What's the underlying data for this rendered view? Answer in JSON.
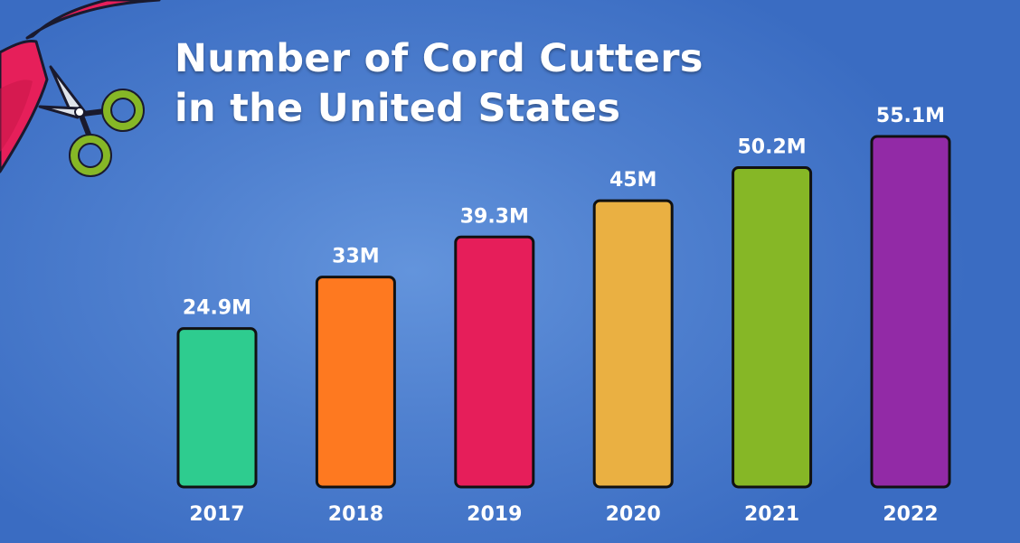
{
  "chart_data": {
    "type": "bar",
    "title": [
      "Number of Cord Cutters",
      "in the United States"
    ],
    "categories": [
      "2017",
      "2018",
      "2019",
      "2020",
      "2021",
      "2022"
    ],
    "values": [
      24.9,
      33,
      39.3,
      45,
      50.2,
      55.1
    ],
    "data_labels": [
      "24.9M",
      "33M",
      "39.3M",
      "45M",
      "50.2M",
      "55.1M"
    ],
    "units": "M",
    "colors": [
      "#2ecc8f",
      "#fe7920",
      "#e61e5a",
      "#eab042",
      "#86b726",
      "#922aa6"
    ],
    "xlabel": "",
    "ylabel": "",
    "ylim": [
      0,
      60
    ],
    "grid": false,
    "legend": "none"
  },
  "decoration": {
    "icon": "scissors-cutting-ribbon-icon",
    "ribbon_color": "#e61f5a",
    "scissor_handle_color": "#86b726"
  }
}
